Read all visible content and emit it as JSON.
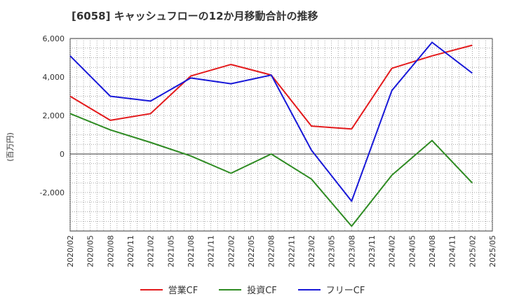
{
  "chart_data": {
    "type": "line",
    "title": "[6058]  キャッシュフローの12か月移動合計の推移",
    "ylabel": "(百万円)",
    "xlabel": "",
    "ylim": [
      -4000,
      6000
    ],
    "yticks": [
      -2000,
      0,
      2000,
      4000,
      6000
    ],
    "ytick_labels": [
      "-2,000",
      "0",
      "2,000",
      "4,000",
      "6,000"
    ],
    "x_tick_labels": [
      "2020/02",
      "2020/05",
      "2020/08",
      "2020/11",
      "2021/02",
      "2021/05",
      "2021/08",
      "2021/11",
      "2022/02",
      "2022/05",
      "2022/08",
      "2022/11",
      "2023/02",
      "2023/05",
      "2023/08",
      "2023/11",
      "2024/02",
      "2024/05",
      "2024/08",
      "2024/11",
      "2025/02",
      "2025/05"
    ],
    "x": [
      "2020/02",
      "2020/08",
      "2021/02",
      "2021/08",
      "2022/02",
      "2022/08",
      "2023/02",
      "2023/08",
      "2024/02",
      "2024/08",
      "2025/02"
    ],
    "grid": true,
    "legend_position": "bottom",
    "series": [
      {
        "name": "営業CF",
        "color": "#e31a1c",
        "values": [
          3000,
          1750,
          2100,
          4050,
          4650,
          4100,
          1450,
          1300,
          4450,
          5100,
          5650
        ]
      },
      {
        "name": "投資CF",
        "color": "#2e8b22",
        "values": [
          2100,
          1250,
          600,
          -100,
          -1000,
          0,
          -1300,
          -3750,
          -1100,
          700,
          -1500
        ]
      },
      {
        "name": "フリーCF",
        "color": "#1818d8",
        "values": [
          5100,
          3000,
          2750,
          3950,
          3650,
          4100,
          200,
          -2450,
          3300,
          5800,
          4200
        ]
      }
    ]
  }
}
